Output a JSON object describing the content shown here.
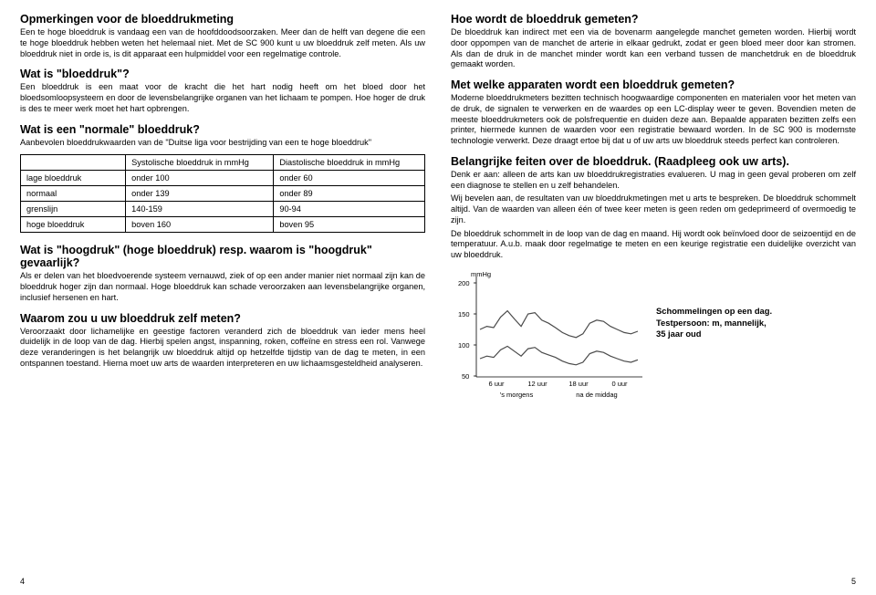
{
  "left": {
    "s1_title": "Opmerkingen voor de bloeddrukmeting",
    "s1_p": "Een te hoge bloeddruk is vandaag een van de hoofddoodsoorzaken. Meer dan de helft van degene die een te hoge bloeddruk hebben weten het helemaal niet. Met de SC 900 kunt u uw bloeddruk zelf meten. Als uw bloeddruk niet in orde is, is dit apparaat een hulpmiddel voor een regelmatige controle.",
    "s2_title": "Wat is \"bloeddruk\"?",
    "s2_p": "Een bloeddruk is een maat voor de kracht die het hart nodig heeft om het bloed door het bloedsomloopsysteem en door de levensbelangrijke organen van het lichaam te pompen. Hoe hoger de druk is des te meer werk moet het hart opbrengen.",
    "s3_title": "Wat is een \"normale\" bloeddruk?",
    "s3_p": "Aanbevolen bloeddrukwaarden van de \"Duitse liga voor bestrijding van een te hoge bloeddruk\"",
    "table": {
      "h1": "",
      "h2": "Systolische bloeddruk in mmHg",
      "h3": "Diastolische bloeddruk in mmHg",
      "rows": [
        {
          "c1": "lage bloeddruk",
          "c2": "onder 100",
          "c3": "onder 60"
        },
        {
          "c1": "normaal",
          "c2": "onder 139",
          "c3": "onder 89"
        },
        {
          "c1": "grenslijn",
          "c2": "140-159",
          "c3": "90-94"
        },
        {
          "c1": "hoge bloeddruk",
          "c2": "boven 160",
          "c3": "boven 95"
        }
      ]
    },
    "s4_title": "Wat is \"hoogdruk\" (hoge bloeddruk) resp. waarom is \"hoogdruk\" gevaarlijk?",
    "s4_p": "Als er delen van het bloedvoerende systeem vernauwd, ziek of op een ander manier niet normaal zijn kan de bloeddruk hoger zijn dan normaal. Hoge bloeddruk kan schade veroorzaken aan levensbelangrijke organen, inclusief hersenen en hart.",
    "s5_title": "Waarom zou u uw bloeddruk zelf meten?",
    "s5_p": "Veroorzaakt door lichamelijke en geestige factoren veranderd zich de bloeddruk van ieder mens heel duidelijk in de loop van de dag. Hierbij spelen angst, inspanning, roken, coffeïne en stress een rol. Vanwege deze veranderingen is het belangrijk uw bloeddruk altijd op hetzelfde tijdstip van de dag te meten, in een ontspannen toestand. Hierna moet uw arts de waarden interpreteren en uw lichaamsgesteldheid analyseren.",
    "page": "4"
  },
  "right": {
    "s1_title": "Hoe wordt de bloeddruk gemeten?",
    "s1_p": "De bloeddruk kan indirect met een via de bovenarm aangelegde manchet gemeten worden. Hierbij wordt door oppompen van de manchet de arterie in elkaar gedrukt, zodat er geen bloed meer door kan stromen. Als dan de druk in de manchet minder wordt kan een verband tussen de manchetdruk en de bloeddruk gemaakt worden.",
    "s2_title": "Met welke apparaten wordt een bloeddruk gemeten?",
    "s2_p": "Moderne bloeddrukmeters bezitten technisch hoogwaardige componenten en materialen voor het meten van de druk, de signalen te verwerken en de waardes op een LC-display weer te geven. Bovendien meten de meeste bloeddrukmeters ook de polsfrequentie en duiden deze aan. Bepaalde apparaten bezitten zelfs een printer, hiermede kunnen de waarden voor een registratie bewaard worden. In de SC 900 is modernste technologie verwerkt. Deze draagt ertoe bij dat u of uw arts uw bloeddruk steeds perfect kan controleren.",
    "s3_title": "Belangrijke feiten over de bloeddruk. (Raadpleeg ook uw arts).",
    "s3_p1": "Denk er aan: alleen de arts kan uw bloeddrukregistraties evalueren. U mag in geen geval proberen om zelf een diagnose te stellen en u zelf behandelen.",
    "s3_p2": "Wij bevelen aan, de resultaten van uw bloeddrukmetingen met u arts te bespreken. De bloeddruk schommelt altijd. Van de waarden van alleen één of twee keer meten is geen reden om gedeprimeerd of overmoedig te zijn.",
    "s3_p3": "De bloeddruk schommelt in de loop van de dag en maand. Hij wordt ook beïnvloed door de seizoentijd en de temperatuur. A.u.b. maak door regelmatige te meten en een keurige registratie een duidelijke overzicht van uw bloeddruk.",
    "chart": {
      "unit": "mmHg",
      "yticks": [
        200,
        150,
        100,
        50
      ],
      "xticks": [
        "6 uur",
        "12 uur",
        "18 uur",
        "0 uur"
      ],
      "xgroups": [
        "'s morgens",
        "na de middag"
      ],
      "caption_l1": "Schommelingen op een dag.",
      "caption_l2": "Testpersoon: m, mannelijk,",
      "caption_l3": "35 jaar oud",
      "axis_color": "#000000",
      "line_color": "#4a4a4a",
      "background": "#ffffff",
      "systolic": [
        125,
        130,
        128,
        145,
        155,
        142,
        130,
        150,
        152,
        140,
        135,
        128,
        120,
        115,
        112,
        118,
        135,
        140,
        138,
        130,
        125,
        120,
        118,
        122
      ],
      "diastolic": [
        78,
        82,
        80,
        92,
        98,
        90,
        82,
        94,
        96,
        88,
        84,
        80,
        74,
        70,
        68,
        72,
        86,
        90,
        88,
        82,
        78,
        74,
        72,
        76
      ]
    },
    "page": "5"
  }
}
